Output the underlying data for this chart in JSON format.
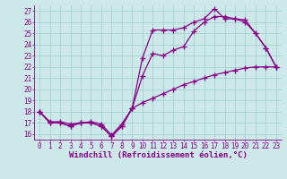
{
  "title": "",
  "xlabel": "Windchill (Refroidissement éolien,°C)",
  "ylabel": "",
  "bg_color": "#cce8e8",
  "line_color": "#880088",
  "grid_color": "#99cccc",
  "ylim": [
    15.5,
    27.5
  ],
  "xlim": [
    -0.5,
    23.5
  ],
  "yticks": [
    16,
    17,
    18,
    19,
    20,
    21,
    22,
    23,
    24,
    25,
    26,
    27
  ],
  "xticks": [
    0,
    1,
    2,
    3,
    4,
    5,
    6,
    7,
    8,
    9,
    10,
    11,
    12,
    13,
    14,
    15,
    16,
    17,
    18,
    19,
    20,
    21,
    22,
    23
  ],
  "line1_x": [
    0,
    1,
    2,
    3,
    4,
    5,
    6,
    7,
    8,
    9,
    10,
    11,
    12,
    13,
    14,
    15,
    16,
    17,
    18,
    19,
    20,
    21,
    22,
    23
  ],
  "line1_y": [
    18.0,
    17.0,
    17.0,
    16.7,
    17.0,
    17.0,
    16.7,
    15.8,
    16.7,
    18.3,
    22.8,
    25.3,
    25.3,
    25.3,
    25.5,
    26.0,
    26.3,
    27.2,
    26.3,
    26.3,
    26.0,
    25.0,
    23.7,
    22.0
  ],
  "line2_x": [
    0,
    1,
    2,
    3,
    4,
    5,
    6,
    7,
    8,
    9,
    10,
    11,
    12,
    13,
    14,
    15,
    16,
    17,
    18,
    19,
    20,
    21,
    22,
    23
  ],
  "line2_y": [
    18.0,
    17.0,
    17.0,
    16.7,
    17.0,
    17.0,
    16.7,
    15.8,
    16.7,
    18.3,
    21.2,
    23.2,
    23.0,
    23.5,
    23.8,
    25.2,
    26.0,
    26.5,
    26.5,
    26.3,
    26.2,
    25.0,
    23.7,
    22.0
  ],
  "line3_x": [
    0,
    1,
    2,
    3,
    4,
    5,
    6,
    7,
    8,
    9,
    10,
    11,
    12,
    13,
    14,
    15,
    16,
    17,
    18,
    19,
    20,
    21,
    22,
    23
  ],
  "line3_y": [
    18.0,
    17.1,
    17.1,
    16.9,
    17.0,
    17.1,
    16.9,
    15.9,
    16.9,
    18.3,
    18.8,
    19.2,
    19.6,
    20.0,
    20.4,
    20.7,
    21.0,
    21.3,
    21.5,
    21.7,
    21.9,
    22.0,
    22.0,
    22.0
  ],
  "marker": "+",
  "markersize": 4,
  "linewidth": 0.9,
  "tick_fontsize": 5.5,
  "xlabel_fontsize": 6.5
}
